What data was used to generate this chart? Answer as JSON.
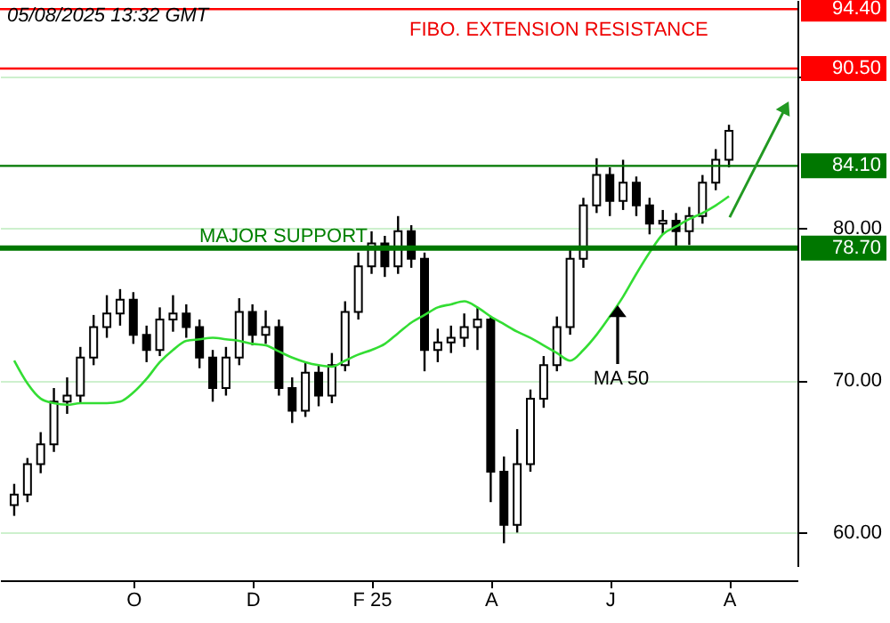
{
  "chart_data": {
    "type": "candlestick",
    "annotations": [
      "05/08/2025 13:32 GMT",
      "FIBO. EXTENSION RESISTANCE",
      "MAJOR SUPPORT",
      "MA 50"
    ],
    "categories": [
      null,
      null,
      null,
      null,
      null,
      null,
      null,
      null,
      null,
      "O",
      null,
      null,
      null,
      null,
      null,
      null,
      null,
      null,
      "D",
      null,
      null,
      null,
      null,
      null,
      null,
      null,
      null,
      "F 25",
      null,
      null,
      null,
      null,
      null,
      null,
      null,
      null,
      "A",
      null,
      null,
      null,
      null,
      null,
      null,
      null,
      null,
      "J",
      null,
      null,
      null,
      null,
      null,
      null,
      null,
      null,
      "A"
    ],
    "ohlc": [
      [
        61.8,
        63.2,
        61.1,
        62.5
      ],
      [
        62.5,
        64.9,
        62.0,
        64.5
      ],
      [
        64.5,
        66.6,
        63.9,
        65.8
      ],
      [
        65.8,
        69.5,
        65.3,
        68.6
      ],
      [
        68.6,
        70.2,
        67.8,
        69.0
      ],
      [
        69.0,
        72.2,
        68.5,
        71.5
      ],
      [
        71.5,
        74.3,
        71.0,
        73.5
      ],
      [
        73.5,
        75.6,
        72.8,
        74.4
      ],
      [
        74.4,
        76.0,
        73.6,
        75.3
      ],
      [
        75.3,
        75.8,
        72.4,
        73.0
      ],
      [
        73.0,
        73.6,
        71.2,
        72.0
      ],
      [
        72.0,
        74.8,
        71.6,
        74.0
      ],
      [
        74.0,
        75.6,
        73.2,
        74.4
      ],
      [
        74.4,
        75.0,
        72.8,
        73.5
      ],
      [
        73.5,
        74.0,
        70.8,
        71.5
      ],
      [
        71.5,
        72.0,
        68.6,
        69.5
      ],
      [
        69.5,
        72.2,
        69.0,
        71.5
      ],
      [
        71.5,
        75.4,
        71.0,
        74.5
      ],
      [
        74.5,
        75.0,
        72.3,
        73.0
      ],
      [
        73.0,
        74.6,
        72.4,
        73.5
      ],
      [
        73.5,
        74.0,
        69.0,
        69.5
      ],
      [
        69.5,
        70.2,
        67.2,
        68.0
      ],
      [
        68.0,
        71.2,
        67.6,
        70.5
      ],
      [
        70.5,
        71.0,
        68.3,
        69.0
      ],
      [
        69.0,
        71.8,
        68.5,
        71.0
      ],
      [
        71.0,
        75.2,
        70.6,
        74.5
      ],
      [
        74.5,
        78.4,
        74.0,
        77.5
      ],
      [
        77.5,
        79.8,
        77.0,
        79.0
      ],
      [
        79.0,
        79.5,
        76.8,
        77.5
      ],
      [
        77.5,
        80.8,
        77.0,
        79.8
      ],
      [
        79.8,
        80.2,
        77.4,
        78.0
      ],
      [
        78.0,
        78.4,
        70.6,
        72.0
      ],
      [
        72.0,
        73.4,
        71.2,
        72.5
      ],
      [
        72.5,
        73.6,
        71.8,
        72.8
      ],
      [
        72.8,
        74.4,
        72.2,
        73.5
      ],
      [
        73.5,
        74.8,
        72.0,
        74.0
      ],
      [
        74.0,
        74.2,
        62.0,
        64.0
      ],
      [
        64.0,
        65.0,
        59.3,
        60.5
      ],
      [
        60.5,
        66.8,
        60.0,
        64.5
      ],
      [
        64.5,
        69.4,
        64.0,
        68.8
      ],
      [
        68.8,
        71.6,
        68.2,
        71.0
      ],
      [
        71.0,
        74.2,
        70.6,
        73.5
      ],
      [
        73.5,
        78.6,
        73.0,
        78.0
      ],
      [
        78.0,
        82.0,
        77.4,
        81.5
      ],
      [
        81.5,
        84.6,
        81.0,
        83.5
      ],
      [
        83.5,
        84.0,
        80.8,
        81.8
      ],
      [
        81.8,
        84.5,
        81.2,
        83.0
      ],
      [
        83.0,
        83.4,
        80.8,
        81.5
      ],
      [
        81.5,
        82.0,
        79.6,
        80.3
      ],
      [
        80.3,
        81.2,
        79.6,
        80.5
      ],
      [
        80.5,
        81.0,
        78.8,
        79.8
      ],
      [
        79.8,
        81.4,
        78.9,
        80.8
      ],
      [
        80.8,
        83.5,
        80.3,
        83.0
      ],
      [
        83.0,
        85.2,
        82.5,
        84.5
      ],
      [
        84.5,
        86.8,
        84.0,
        86.4
      ]
    ],
    "series": [
      {
        "type": "line",
        "color": "#33dd33",
        "values": [
          71.3,
          69.8,
          68.8,
          68.5,
          68.4,
          68.5,
          68.5,
          68.5,
          68.6,
          69.2,
          70.1,
          71.2,
          72.0,
          72.6,
          72.7,
          72.8,
          72.7,
          72.6,
          72.4,
          72.3,
          71.9,
          71.5,
          71.2,
          71.0,
          70.9,
          71.3,
          71.7,
          72.0,
          72.4,
          73.1,
          73.8,
          74.3,
          74.8,
          75.0,
          75.2,
          74.8,
          74.2,
          73.7,
          73.2,
          72.8,
          72.3,
          71.8,
          71.3,
          72.0,
          73.0,
          74.2,
          75.5,
          77.0,
          78.4,
          79.6,
          80.1,
          80.6,
          81.0,
          81.5,
          82.1
        ]
      }
    ],
    "ylim": [
      57.8,
      95
    ],
    "yticks": [
      {
        "value": 60,
        "label": "60.00"
      },
      {
        "value": 70,
        "label": "70.00"
      },
      {
        "value": 80,
        "label": "80.00"
      },
      {
        "value": 90,
        "label": null
      }
    ],
    "grid": "y",
    "ref_lines": [
      {
        "axis": "y",
        "value": 94.4,
        "label": "94.40",
        "color": "#ff0000"
      },
      {
        "axis": "y",
        "value": 90.5,
        "label": "90.50",
        "color": "#ff0000"
      },
      {
        "axis": "y",
        "value": 84.1,
        "label": "84.10",
        "color": "#007700"
      },
      {
        "axis": "y",
        "value": 78.7,
        "label": "78.70",
        "color": "#007700"
      }
    ]
  }
}
